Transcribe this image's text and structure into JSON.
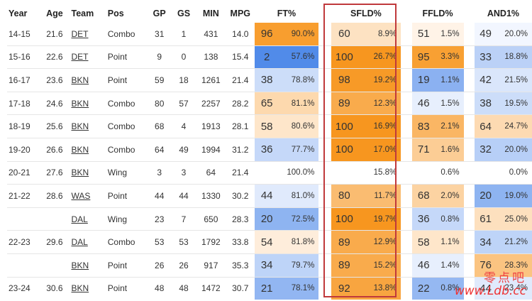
{
  "headers": {
    "year": "Year",
    "age": "Age",
    "team": "Team",
    "pos": "Pos",
    "gp": "GP",
    "gs": "GS",
    "min": "MIN",
    "mpg": "MPG",
    "ft": "FT%",
    "sfld": "SFLD%",
    "ffld": "FFLD%",
    "and1": "AND1%"
  },
  "rows": [
    {
      "year": "14-15",
      "age": "21.6",
      "team": "DET",
      "pos": "Combo",
      "gp": "31",
      "gs": "1",
      "min": "431",
      "mpg": "14.0",
      "ft_pct": "96",
      "ft_val": "90.0%",
      "sfld_pct": "60",
      "sfld_val": "8.9%",
      "ffld_pct": "51",
      "ffld_val": "1.5%",
      "and1_pct": "49",
      "and1_val": "20.0%"
    },
    {
      "year": "15-16",
      "age": "22.6",
      "team": "DET",
      "pos": "Point",
      "gp": "9",
      "gs": "0",
      "min": "138",
      "mpg": "15.4",
      "ft_pct": "2",
      "ft_val": "57.6%",
      "sfld_pct": "100",
      "sfld_val": "26.7%",
      "ffld_pct": "95",
      "ffld_val": "3.3%",
      "and1_pct": "33",
      "and1_val": "18.8%"
    },
    {
      "year": "16-17",
      "age": "23.6",
      "team": "BKN",
      "pos": "Point",
      "gp": "59",
      "gs": "18",
      "min": "1261",
      "mpg": "21.4",
      "ft_pct": "38",
      "ft_val": "78.8%",
      "sfld_pct": "98",
      "sfld_val": "19.2%",
      "ffld_pct": "19",
      "ffld_val": "1.1%",
      "and1_pct": "42",
      "and1_val": "21.5%"
    },
    {
      "year": "17-18",
      "age": "24.6",
      "team": "BKN",
      "pos": "Combo",
      "gp": "80",
      "gs": "57",
      "min": "2257",
      "mpg": "28.2",
      "ft_pct": "65",
      "ft_val": "81.1%",
      "sfld_pct": "89",
      "sfld_val": "12.3%",
      "ffld_pct": "46",
      "ffld_val": "1.5%",
      "and1_pct": "38",
      "and1_val": "19.5%"
    },
    {
      "year": "18-19",
      "age": "25.6",
      "team": "BKN",
      "pos": "Combo",
      "gp": "68",
      "gs": "4",
      "min": "1913",
      "mpg": "28.1",
      "ft_pct": "58",
      "ft_val": "80.6%",
      "sfld_pct": "100",
      "sfld_val": "16.9%",
      "ffld_pct": "83",
      "ffld_val": "2.1%",
      "and1_pct": "64",
      "and1_val": "24.7%"
    },
    {
      "year": "19-20",
      "age": "26.6",
      "team": "BKN",
      "pos": "Combo",
      "gp": "64",
      "gs": "49",
      "min": "1994",
      "mpg": "31.2",
      "ft_pct": "36",
      "ft_val": "77.7%",
      "sfld_pct": "100",
      "sfld_val": "17.0%",
      "ffld_pct": "71",
      "ffld_val": "1.6%",
      "and1_pct": "32",
      "and1_val": "20.0%"
    },
    {
      "year": "20-21",
      "age": "27.6",
      "team": "BKN",
      "pos": "Wing",
      "gp": "3",
      "gs": "3",
      "min": "64",
      "mpg": "21.4",
      "ft_pct": "",
      "ft_val": "100.0%",
      "sfld_pct": "",
      "sfld_val": "15.8%",
      "ffld_pct": "",
      "ffld_val": "0.6%",
      "and1_pct": "",
      "and1_val": "0.0%"
    },
    {
      "year": "21-22",
      "age": "28.6",
      "team": "WAS",
      "pos": "Point",
      "gp": "44",
      "gs": "44",
      "min": "1330",
      "mpg": "30.2",
      "ft_pct": "44",
      "ft_val": "81.0%",
      "sfld_pct": "80",
      "sfld_val": "11.7%",
      "ffld_pct": "68",
      "ffld_val": "2.0%",
      "and1_pct": "20",
      "and1_val": "19.0%"
    },
    {
      "year": "",
      "age": "",
      "team": "DAL",
      "pos": "Wing",
      "gp": "23",
      "gs": "7",
      "min": "650",
      "mpg": "28.3",
      "ft_pct": "20",
      "ft_val": "72.5%",
      "sfld_pct": "100",
      "sfld_val": "19.7%",
      "ffld_pct": "36",
      "ffld_val": "0.8%",
      "and1_pct": "61",
      "and1_val": "25.0%"
    },
    {
      "year": "22-23",
      "age": "29.6",
      "team": "DAL",
      "pos": "Combo",
      "gp": "53",
      "gs": "53",
      "min": "1792",
      "mpg": "33.8",
      "ft_pct": "54",
      "ft_val": "81.8%",
      "sfld_pct": "89",
      "sfld_val": "12.9%",
      "ffld_pct": "58",
      "ffld_val": "1.1%",
      "and1_pct": "34",
      "and1_val": "21.2%"
    },
    {
      "year": "",
      "age": "",
      "team": "BKN",
      "pos": "Point",
      "gp": "26",
      "gs": "26",
      "min": "917",
      "mpg": "35.3",
      "ft_pct": "34",
      "ft_val": "79.7%",
      "sfld_pct": "89",
      "sfld_val": "15.2%",
      "ffld_pct": "46",
      "ffld_val": "1.4%",
      "and1_pct": "76",
      "and1_val": "28.3%"
    },
    {
      "year": "23-24",
      "age": "30.6",
      "team": "BKN",
      "pos": "Point",
      "gp": "48",
      "gs": "48",
      "min": "1472",
      "mpg": "30.7",
      "ft_pct": "21",
      "ft_val": "78.1%",
      "sfld_pct": "92",
      "sfld_val": "13.8%",
      "ffld_pct": "22",
      "ffld_val": "0.8%",
      "and1_pct": "44",
      "and1_val": "23.4%"
    }
  ],
  "colors": {
    "orange_strong": "#f7961f",
    "blue_strong": "#4a86e8",
    "neutral": "#ffffff",
    "highlight_border": "#c0393c"
  },
  "watermark": {
    "cn": "零点吧",
    "url": "www.Ldb.cc"
  }
}
